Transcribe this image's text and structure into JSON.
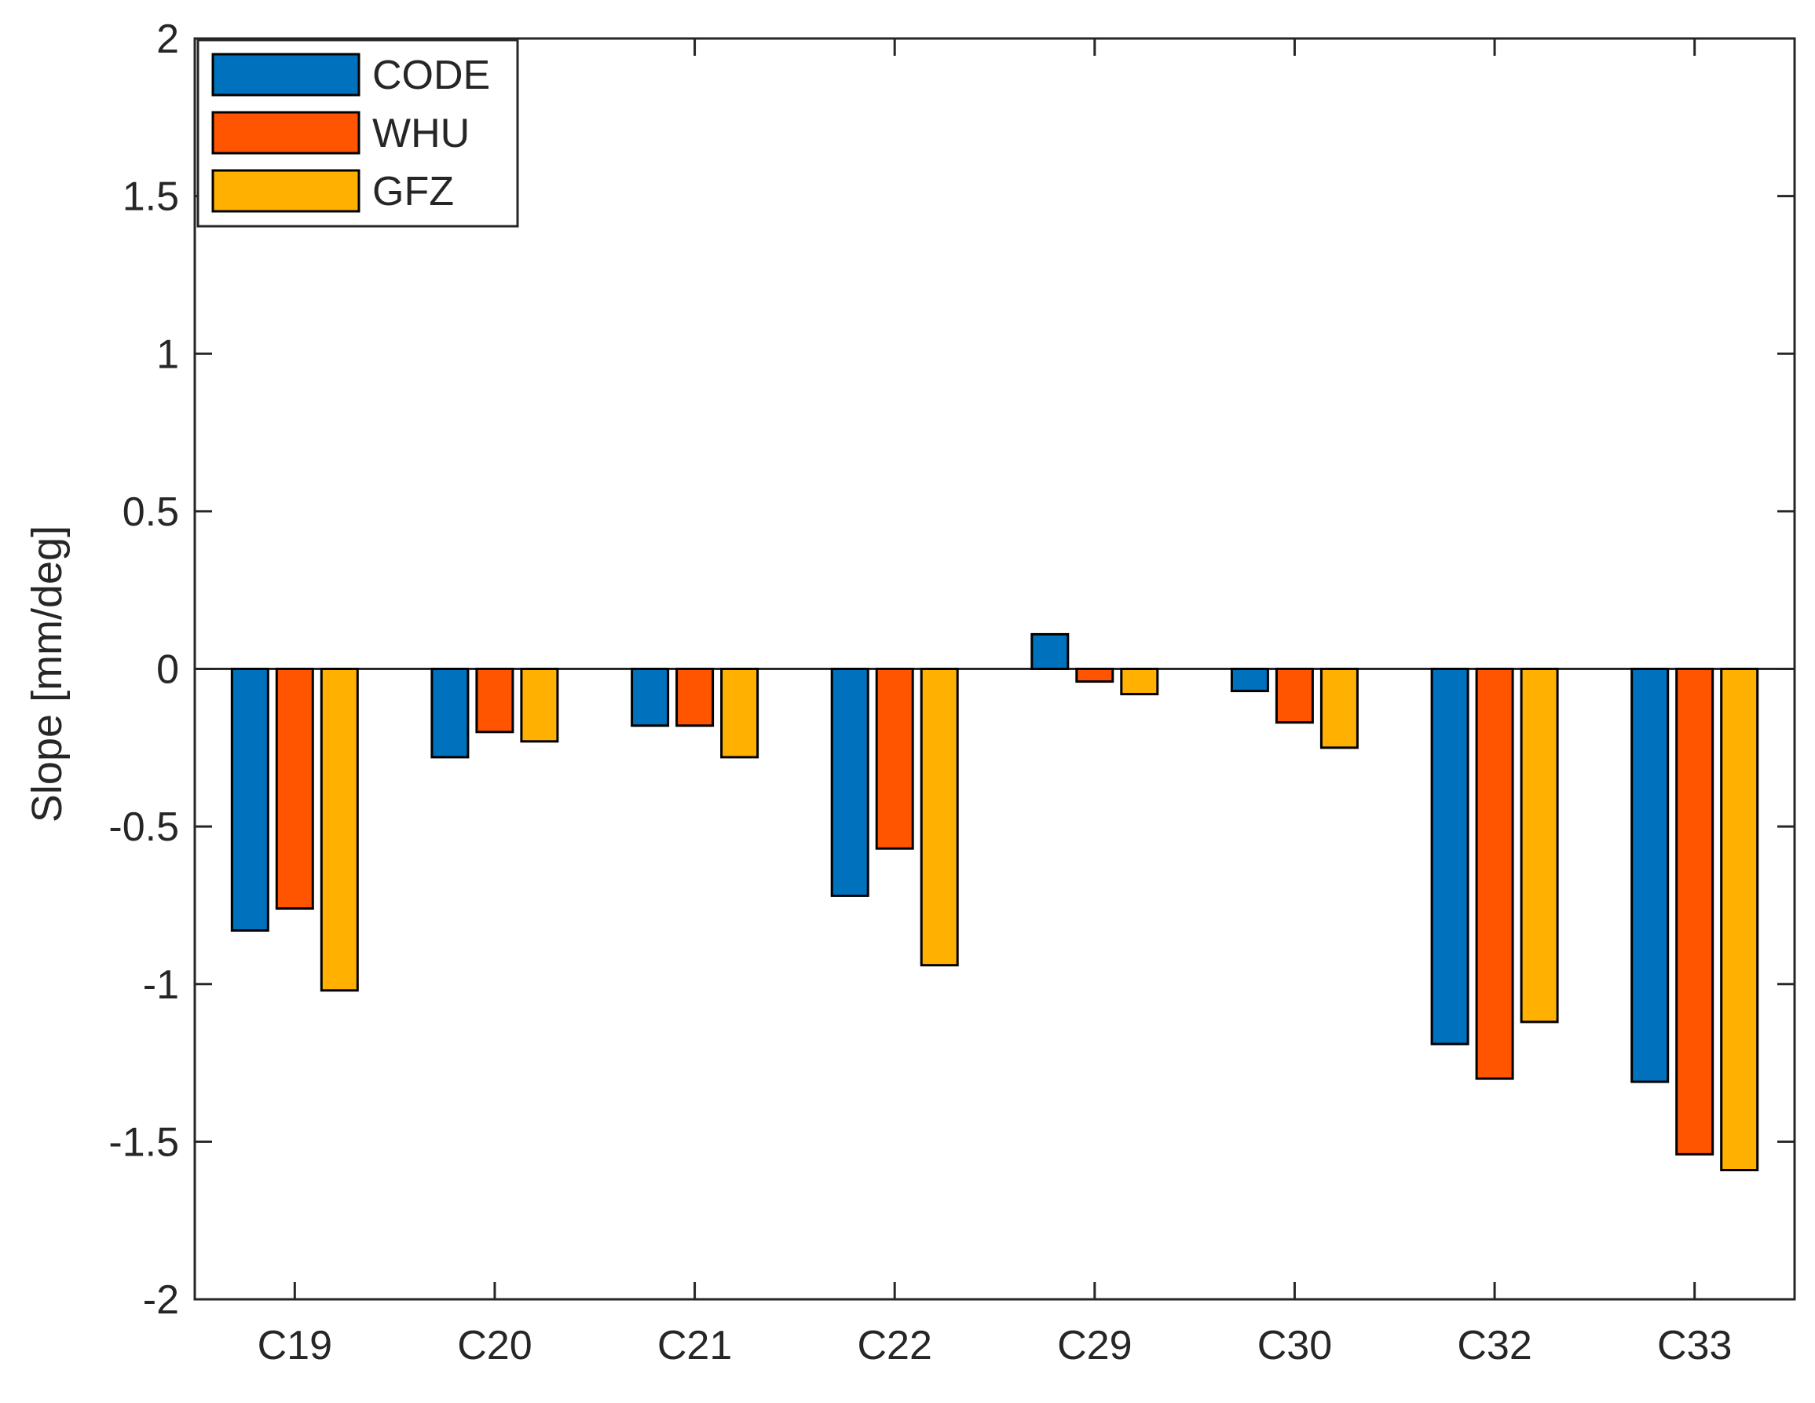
{
  "chart_data": {
    "type": "bar",
    "title": "",
    "xlabel": "",
    "ylabel": "Slope [mm/deg]",
    "ylim": [
      -2,
      2
    ],
    "yticks": [
      -2,
      -1.5,
      -1,
      -0.5,
      0,
      0.5,
      1,
      1.5,
      2
    ],
    "ytick_labels": [
      "-2",
      "-1.5",
      "-1",
      "-0.5",
      "0",
      "0.5",
      "1",
      "1.5",
      "2"
    ],
    "categories": [
      "C19",
      "C20",
      "C21",
      "C22",
      "C29",
      "C30",
      "C32",
      "C33"
    ],
    "grid": false,
    "legend_position": "top-left",
    "series": [
      {
        "name": "CODE",
        "color": "#0072BD",
        "values": [
          -0.83,
          -0.28,
          -0.18,
          -0.72,
          0.11,
          -0.07,
          -1.19,
          -1.31
        ]
      },
      {
        "name": "WHU",
        "color": "#FF5500",
        "values": [
          -0.76,
          -0.2,
          -0.18,
          -0.57,
          -0.04,
          -0.17,
          -1.3,
          -1.54
        ]
      },
      {
        "name": "GFZ",
        "color": "#FFB000",
        "values": [
          -1.02,
          -0.23,
          -0.28,
          -0.94,
          -0.08,
          -0.25,
          -1.12,
          -1.59
        ]
      }
    ]
  }
}
